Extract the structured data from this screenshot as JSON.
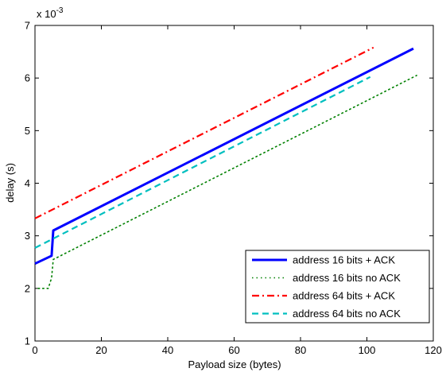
{
  "chart_data": {
    "type": "line",
    "title": "",
    "xlabel": "Payload size (bytes)",
    "ylabel": "delay (s)",
    "y_multiplier_label": "x 10",
    "y_multiplier_exponent": "-3",
    "xlim": [
      0,
      120
    ],
    "ylim": [
      1,
      7
    ],
    "x_ticks": [
      0,
      20,
      40,
      60,
      80,
      100,
      120
    ],
    "y_ticks": [
      1,
      2,
      3,
      4,
      5,
      6,
      7
    ],
    "grid": false,
    "legend_position": "bottom-right",
    "series": [
      {
        "name": "address 16 bits + ACK",
        "color": "#0000ff",
        "style": "solid",
        "points": [
          [
            0,
            2.47
          ],
          [
            5,
            2.62
          ],
          [
            5.5,
            3.1
          ],
          [
            114,
            6.56
          ]
        ]
      },
      {
        "name": "address 16 bits no ACK",
        "color": "#008000",
        "style": "dotted",
        "points": [
          [
            1,
            2.0
          ],
          [
            4,
            2.0
          ],
          [
            5,
            2.2
          ],
          [
            5.5,
            2.55
          ],
          [
            115,
            6.05
          ]
        ]
      },
      {
        "name": "address 64 bits + ACK",
        "color": "#ff0000",
        "style": "dashdot",
        "points": [
          [
            0,
            3.33
          ],
          [
            102,
            6.58
          ]
        ]
      },
      {
        "name": "address 64 bits no ACK",
        "color": "#00bfbf",
        "style": "dashed",
        "points": [
          [
            0,
            2.77
          ],
          [
            101,
            6.02
          ]
        ]
      }
    ]
  }
}
